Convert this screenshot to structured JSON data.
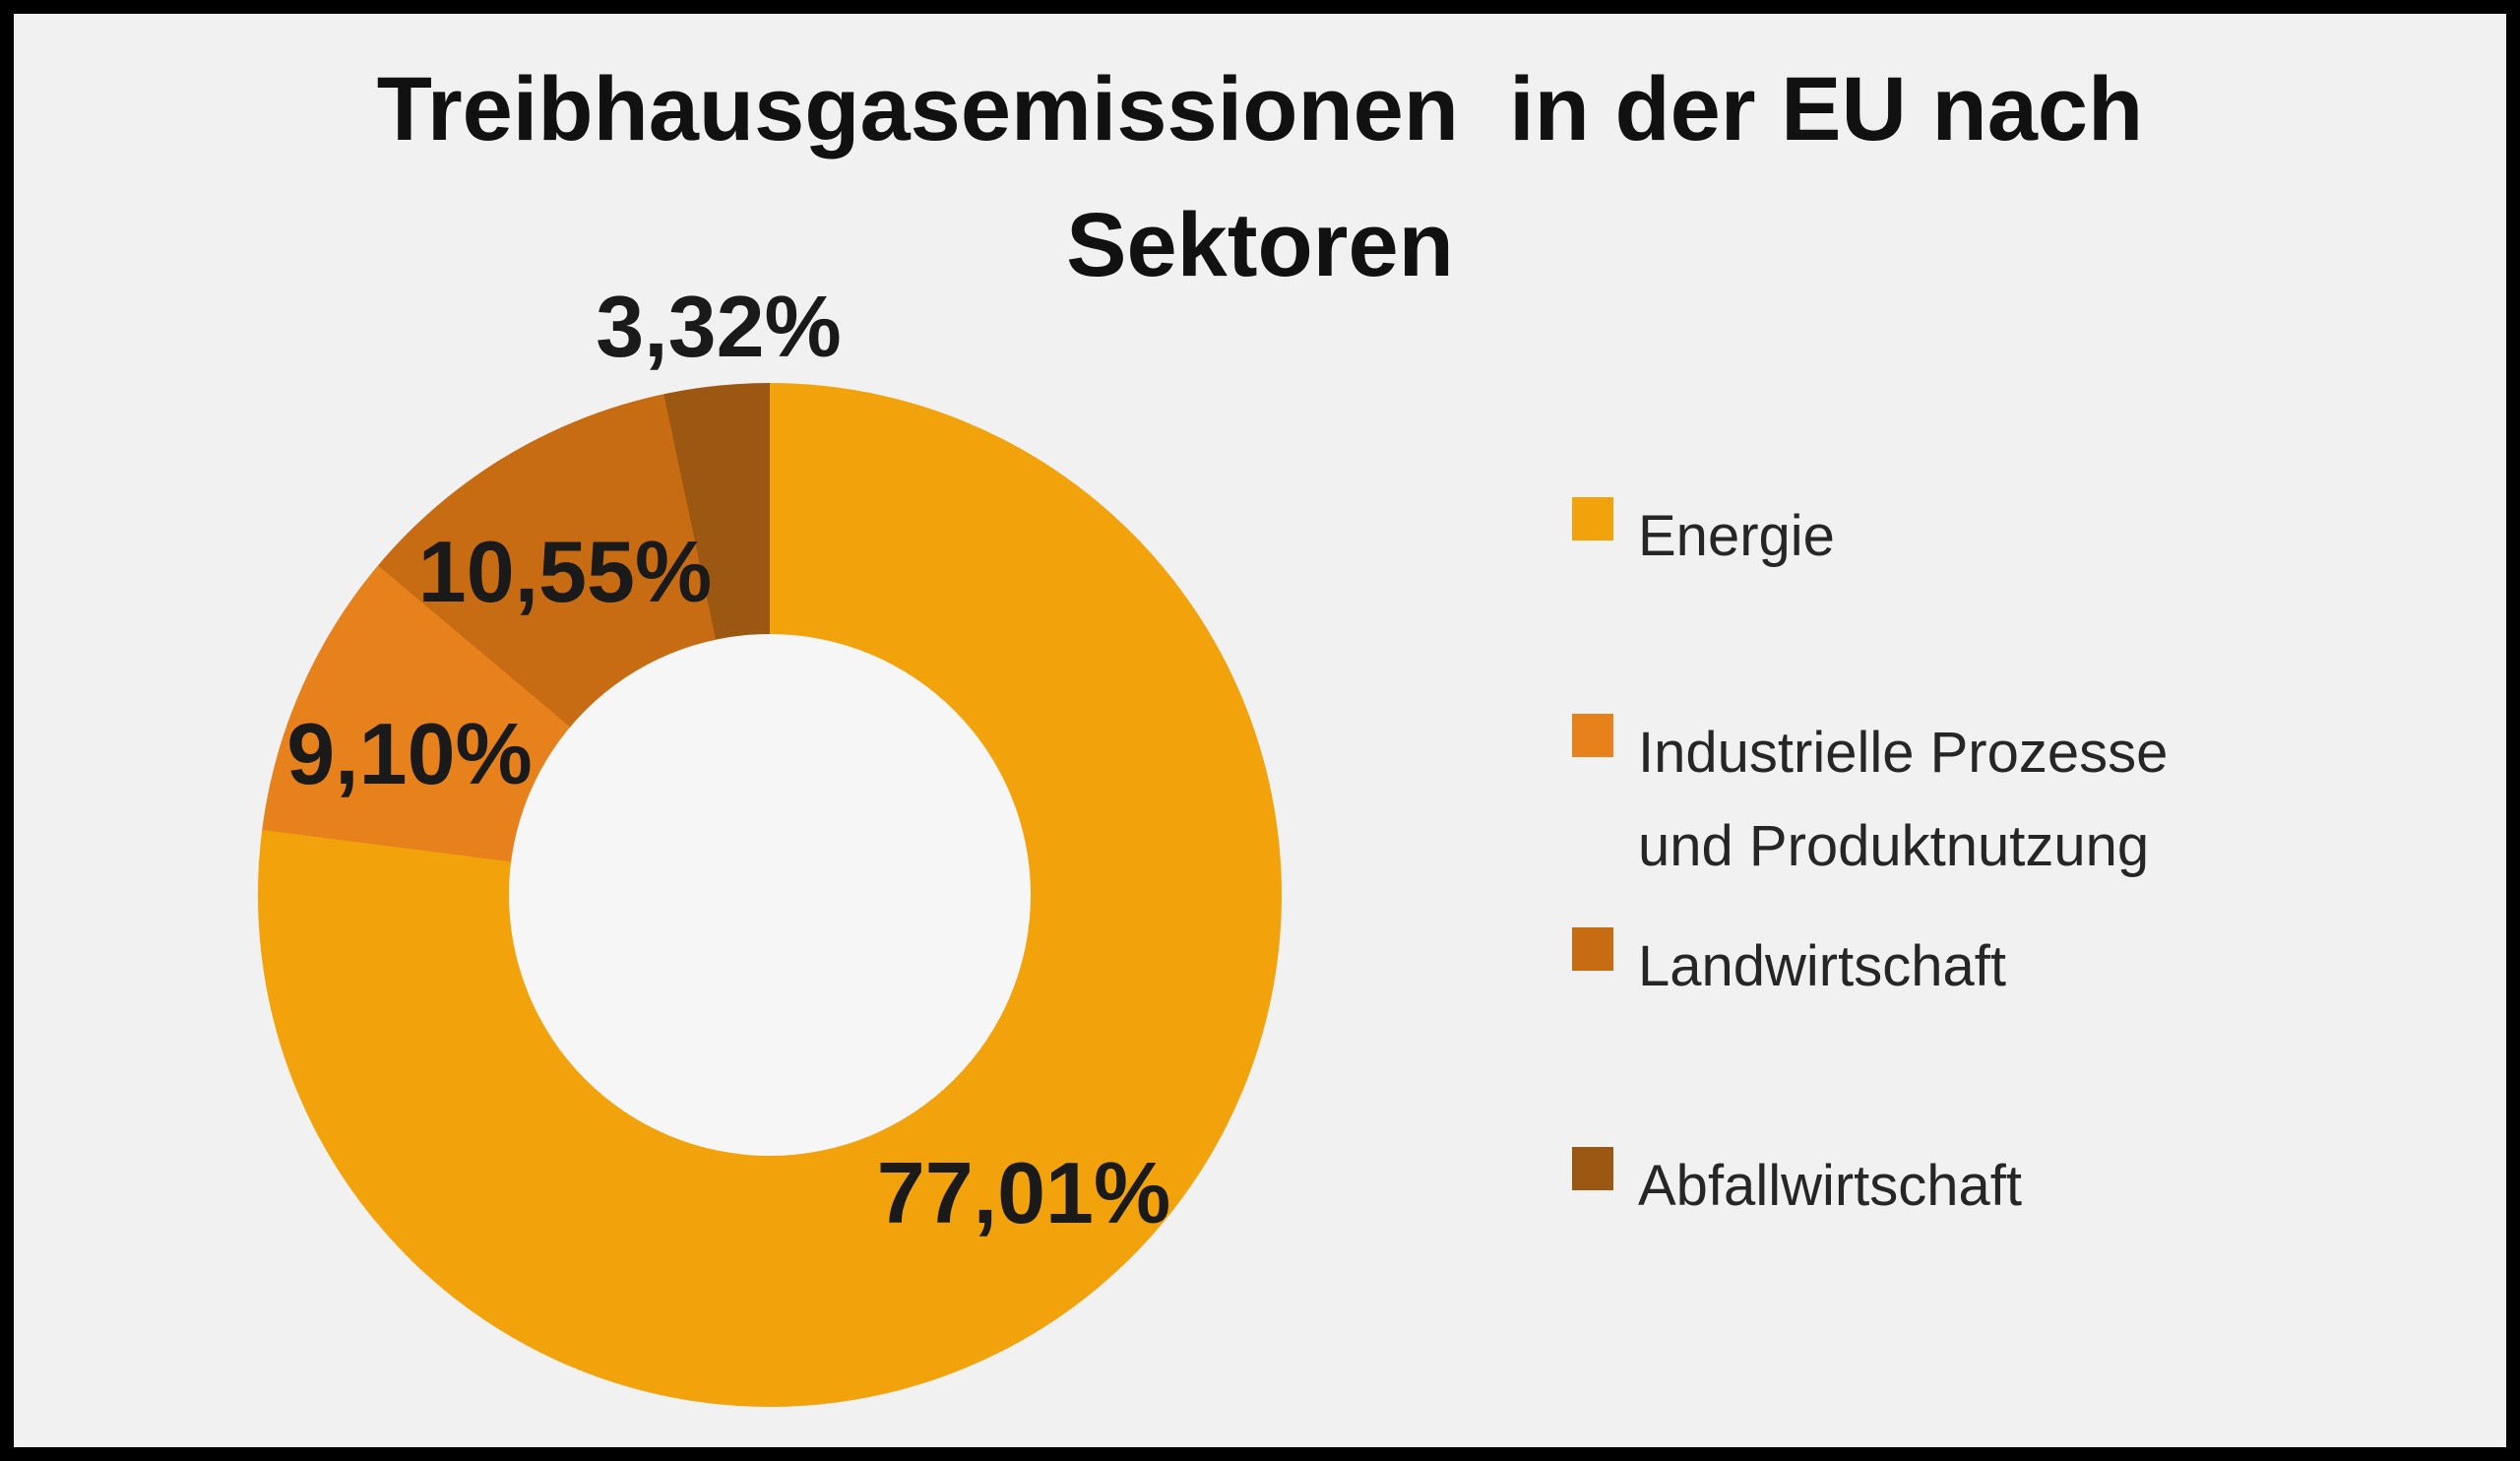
{
  "chart_data": {
    "type": "pie",
    "subtype": "donut",
    "title": "Treibhausgasemissionen in der EU nach Sektoren",
    "title_lines": [
      "Treibhausgasemissionen  in der EU nach",
      "Sektoren"
    ],
    "categories": [
      "Energie",
      "Industrielle Prozesse und Produktnutzung",
      "Landwirtschaft",
      "Abfallwirtschaft"
    ],
    "values": [
      77.01,
      9.1,
      10.55,
      3.32
    ],
    "data_labels": [
      "77,01%",
      "9,10%",
      "10,55%",
      "3,32%"
    ],
    "colors": [
      "#F2A30B",
      "#E6811C",
      "#C76C12",
      "#9C5712"
    ],
    "start_angle_deg": 0,
    "direction": "clockwise",
    "hole_ratio": 0.51,
    "legend_position": "right",
    "label_color": "#1A1A1A",
    "background_color": "#F1F1F1",
    "border_color": "#000000"
  },
  "legend": {
    "items": [
      {
        "lines": [
          "Energie"
        ]
      },
      {
        "lines": [
          "Industrielle Prozesse",
          "und Produktnutzung"
        ]
      },
      {
        "lines": [
          "Landwirtschaft"
        ]
      },
      {
        "lines": [
          "Abfallwirtschaft"
        ]
      }
    ]
  }
}
